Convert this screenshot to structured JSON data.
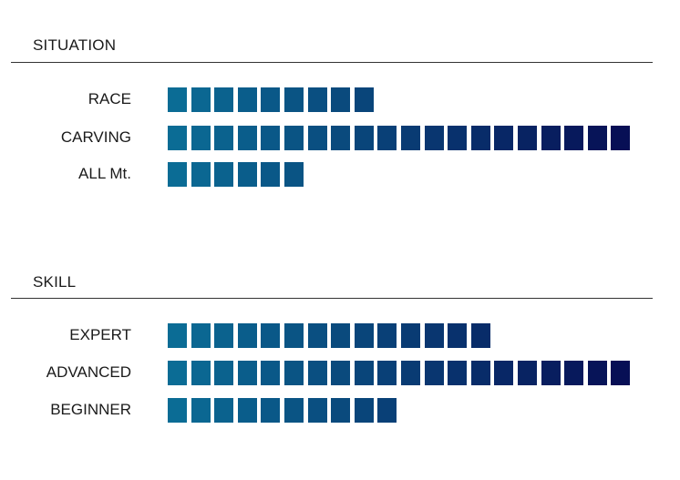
{
  "chart_data": [
    {
      "type": "bar",
      "title": "SITUATION",
      "categories": [
        "RACE",
        "CARVING",
        "ALL Mt."
      ],
      "values": [
        9,
        20,
        6
      ],
      "xlim": [
        0,
        20
      ]
    },
    {
      "type": "bar",
      "title": "SKILL",
      "categories": [
        "EXPERT",
        "ADVANCED",
        "BEGINNER"
      ],
      "values": [
        14,
        20,
        10
      ],
      "xlim": [
        0,
        20
      ]
    }
  ],
  "colors": {
    "gradient_start": "#0b6c95",
    "gradient_end": "#070f55"
  }
}
